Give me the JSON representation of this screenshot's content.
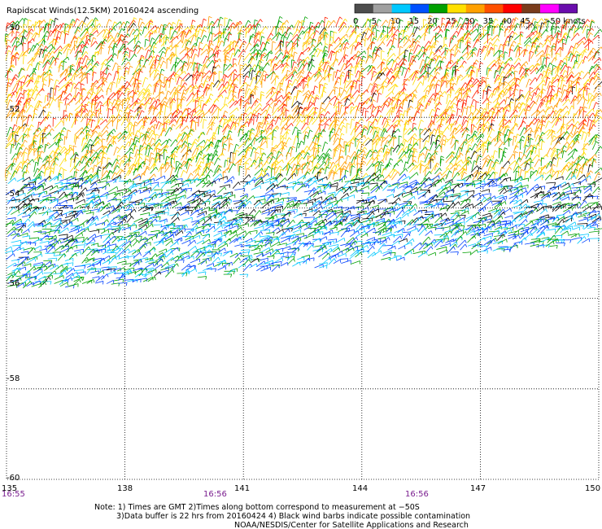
{
  "title": "Rapidscat Winds(12.5KM) 20160424 ascending",
  "legend": {
    "ticks": [
      "0",
      "5",
      "10",
      "15",
      "20",
      "25",
      "30",
      "35",
      "40",
      "45",
      ">50 knots"
    ],
    "colors": [
      "#4d4d4d",
      "#a0a0a0",
      "#00c8ff",
      "#0050ff",
      "#00a000",
      "#ffe000",
      "#ffa000",
      "#ff5000",
      "#ff0000",
      "#7a3b1b",
      "#ff00ff",
      "#6a0dad"
    ]
  },
  "lat_labels": [
    "-50",
    "-52",
    "-54",
    "-56",
    "-58",
    "-60"
  ],
  "lon_labels": [
    "135",
    "138",
    "141",
    "144",
    "147",
    "150"
  ],
  "times": [
    "16:55",
    "16:56",
    "16:56"
  ],
  "notes": {
    "line1": "Note: 1) Times are GMT 2)Times along bottom correspond to measurement at −50S",
    "line2": "3)Data buffer is 22 hrs from 20160424 4) Black wind barbs indicate possible contamination",
    "line3": "NOAA/NESDIS/Center for Satellite Applications and Research"
  },
  "map_data": {
    "lon_range": [
      135,
      150
    ],
    "lat_range": [
      -60,
      -50
    ],
    "swath_bands": [
      {
        "lat_from": -50.0,
        "lat_to": -51.2,
        "color_names": [
          "orange",
          "yellow",
          "red",
          "green"
        ]
      },
      {
        "lat_from": -51.2,
        "lat_to": -52.4,
        "color_names": [
          "yellow",
          "orange",
          "red"
        ]
      },
      {
        "lat_from": -52.4,
        "lat_to": -53.4,
        "color_names": [
          "green",
          "orange",
          "yellow"
        ]
      },
      {
        "lat_from": -53.4,
        "lat_to": -54.4,
        "color_names": [
          "blue",
          "cyan",
          "green",
          "black"
        ]
      },
      {
        "lat_from": -54.4,
        "lat_to": -55.8,
        "color_names": [
          "cyan",
          "blue",
          "green"
        ]
      }
    ]
  }
}
